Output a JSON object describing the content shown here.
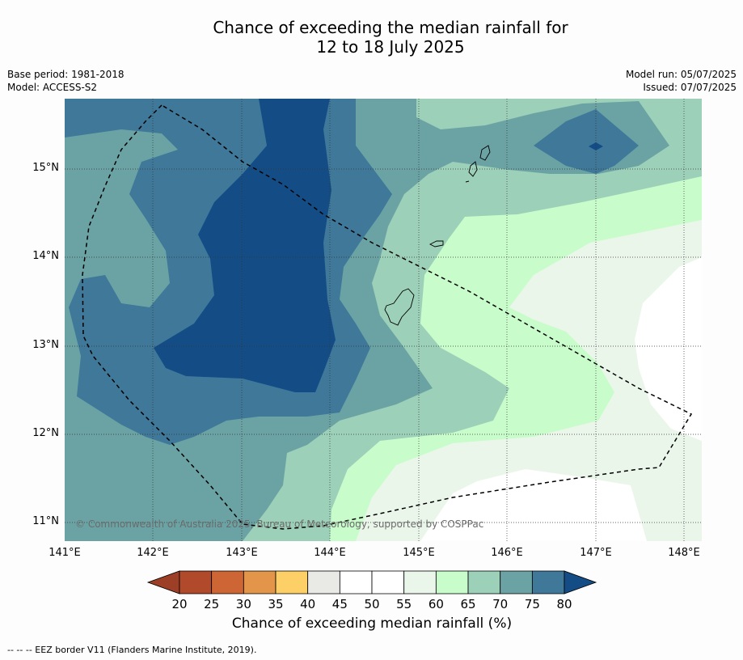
{
  "title_line1": "Chance of exceeding the median rainfall for",
  "title_line2": "12 to 18 July 2025",
  "base_period": "Base period: 1981-2018",
  "model": "Model: ACCESS-S2",
  "model_run": "Model run: 05/07/2025",
  "issued": "Issued: 07/07/2025",
  "credit": "© Commonwealth of Australia 2025, Bureau of Meteorology, supported by COSPPac",
  "lat_labels": [
    "15°N",
    "14°N",
    "13°N",
    "12°N",
    "11°N"
  ],
  "lon_labels": [
    "141°E",
    "142°E",
    "143°E",
    "144°E",
    "145°E",
    "146°E",
    "147°E",
    "148°E"
  ],
  "colorbar": {
    "title": "Chance of exceeding median rainfall (%)",
    "ticks": [
      "20",
      "25",
      "30",
      "35",
      "40",
      "45",
      "50",
      "55",
      "60",
      "65",
      "70",
      "75",
      "80"
    ],
    "colors": [
      "#b04a2a",
      "#cd6634",
      "#e3964a",
      "#fdd067",
      "#e9e9e6",
      "#ffffff",
      "#ffffff",
      "#ebf6ea",
      "#c9fccb",
      "#9dd0b8",
      "#6ba3a4",
      "#3f7899"
    ],
    "under_color": "#9c3f26",
    "over_color": "#144d86"
  },
  "footer": "--  --  -- EEZ border V11 (Flanders Marine Institute, 2019)."
}
